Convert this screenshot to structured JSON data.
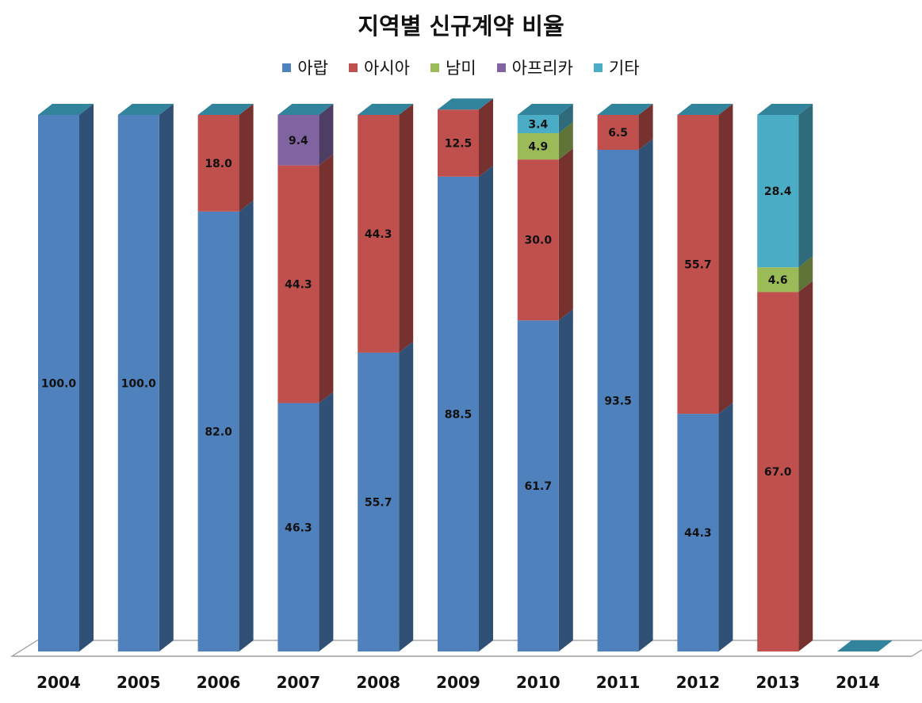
{
  "chart_data": {
    "type": "bar",
    "stacked": true,
    "three_d": true,
    "title": "지역별 신규계약 비율",
    "categories": [
      "2004",
      "2005",
      "2006",
      "2007",
      "2008",
      "2009",
      "2010",
      "2011",
      "2012",
      "2013",
      "2014"
    ],
    "series": [
      {
        "name": "아랍",
        "color": "#4F81BD",
        "values": [
          100.0,
          100.0,
          82.0,
          46.3,
          55.7,
          88.5,
          61.7,
          93.5,
          44.3,
          0,
          0
        ]
      },
      {
        "name": "아시아",
        "color": "#C0504D",
        "values": [
          0,
          0,
          18.0,
          44.3,
          44.3,
          12.5,
          30.0,
          6.5,
          55.7,
          67.0,
          0
        ]
      },
      {
        "name": "남미",
        "color": "#9BBB59",
        "values": [
          0,
          0,
          0,
          0,
          0,
          0,
          4.9,
          0,
          0,
          4.6,
          0
        ]
      },
      {
        "name": "아프리카",
        "color": "#8064A2",
        "values": [
          0,
          0,
          0,
          9.4,
          0,
          0,
          0,
          0,
          0,
          0,
          0
        ]
      },
      {
        "name": "기타",
        "color": "#4BACC6",
        "values": [
          0,
          0,
          0,
          0,
          0,
          0,
          3.4,
          0,
          0,
          28.4,
          0
        ]
      }
    ],
    "ylim": [
      0,
      100
    ],
    "legend_position": "top",
    "grid": false
  }
}
